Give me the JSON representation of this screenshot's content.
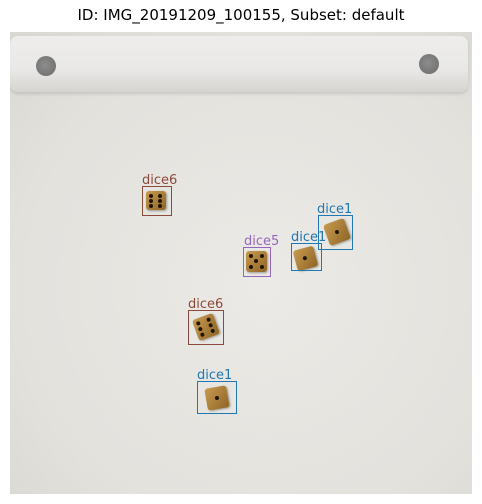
{
  "title": "ID: IMG_20191209_100155, Subset: default",
  "colors": {
    "dice1": "#1f77b4",
    "dice5": "#9467bd",
    "dice6": "#8c4a3c"
  },
  "annotations": [
    {
      "label": "dice6"
    },
    {
      "label": "dice1"
    },
    {
      "label": "dice5"
    },
    {
      "label": "dice1"
    },
    {
      "label": "dice6"
    },
    {
      "label": "dice1"
    }
  ]
}
